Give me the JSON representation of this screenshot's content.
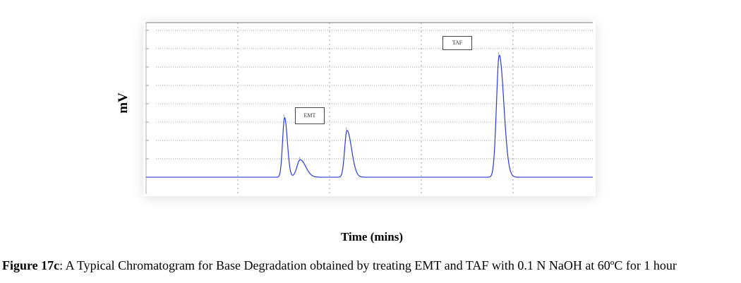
{
  "figure": {
    "caption_label": "Figure 17c",
    "caption_text": ": A Typical Chromatogram for Base Degradation obtained by treating EMT and TAF with 0.1 N NaOH at 60ºC for 1 hour"
  },
  "chart_data": {
    "type": "line",
    "title": "",
    "xlabel": "Time (mins)",
    "ylabel": "mV",
    "xlim": [
      0,
      4.87
    ],
    "ylim": [
      -0.92,
      8.42
    ],
    "grid": true,
    "line_color": "#2b3bd6",
    "grid_color": "#8a8a8a",
    "series": [
      {
        "peaks": [
          {
            "x": 1.51,
            "y": 3.25,
            "width_left": 0.022,
            "width_right": 0.03
          },
          {
            "x": 1.68,
            "y": 0.95,
            "width_left": 0.035,
            "width_right": 0.06
          },
          {
            "x": 2.19,
            "y": 2.55,
            "width_left": 0.025,
            "width_right": 0.05
          },
          {
            "x": 3.85,
            "y": 6.65,
            "width_left": 0.03,
            "width_right": 0.05
          }
        ]
      }
    ],
    "annotations": [
      {
        "text": "EMT"
      },
      {
        "text": "TAF"
      }
    ]
  }
}
